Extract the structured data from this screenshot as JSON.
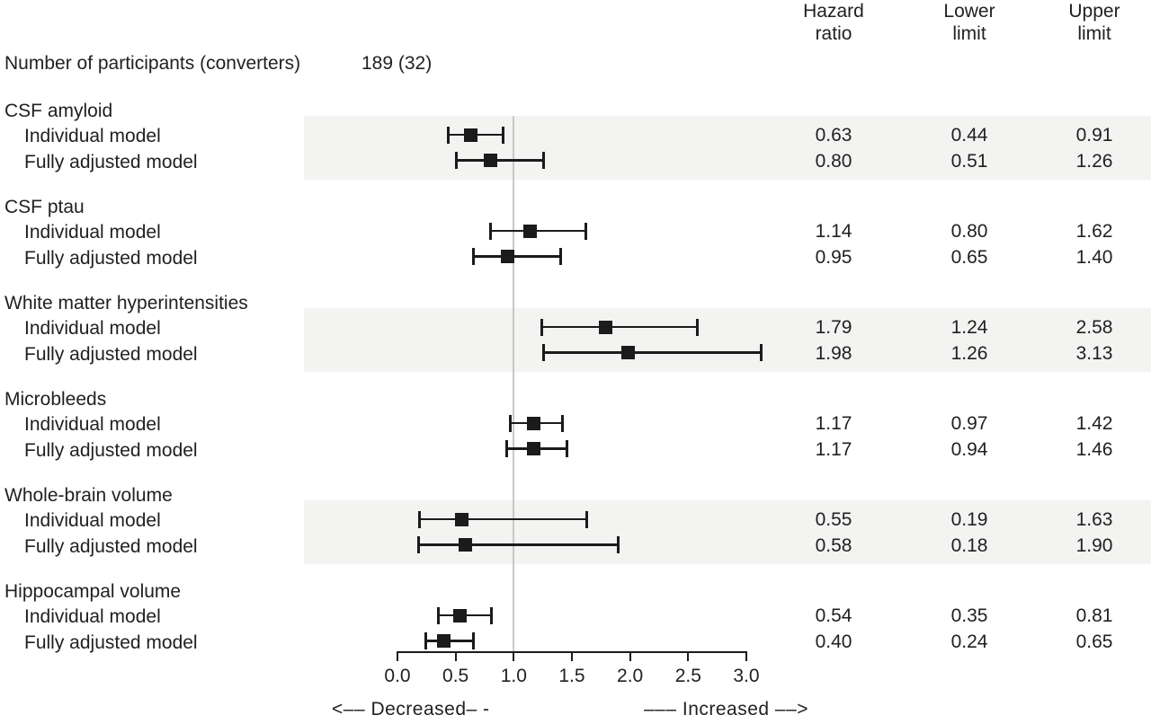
{
  "participants": {
    "label": "Number of participants (converters)",
    "value": "189 (32)"
  },
  "header": {
    "columns": [
      {
        "line1": "Hazard",
        "line2": "ratio"
      },
      {
        "line1": "Lower",
        "line2": "limit"
      },
      {
        "line1": "Upper",
        "line2": "limit"
      }
    ]
  },
  "chart_data": {
    "type": "forest",
    "title": "",
    "columns": [
      "Hazard ratio",
      "Lower limit",
      "Upper limit"
    ],
    "x_axis": {
      "range": [
        0.0,
        3.0
      ],
      "ticks": [
        "0.0",
        "0.5",
        "1.0",
        "1.5",
        "2.0",
        "2.5",
        "3.0"
      ],
      "reference_line": 1.0,
      "grid": false
    },
    "groups": [
      {
        "name": "CSF amyloid",
        "shaded": true,
        "rows": [
          {
            "label": "Individual model",
            "hazard_ratio": "0.63",
            "lower_limit": "0.44",
            "upper_limit": "0.91"
          },
          {
            "label": "Fully adjusted model",
            "hazard_ratio": "0.80",
            "lower_limit": "0.51",
            "upper_limit": "1.26"
          }
        ]
      },
      {
        "name": "CSF ptau",
        "shaded": false,
        "rows": [
          {
            "label": "Individual model",
            "hazard_ratio": "1.14",
            "lower_limit": "0.80",
            "upper_limit": "1.62"
          },
          {
            "label": "Fully adjusted model",
            "hazard_ratio": "0.95",
            "lower_limit": "0.65",
            "upper_limit": "1.40"
          }
        ]
      },
      {
        "name": "White matter hyperintensities",
        "shaded": true,
        "rows": [
          {
            "label": "Individual model",
            "hazard_ratio": "1.79",
            "lower_limit": "1.24",
            "upper_limit": "2.58"
          },
          {
            "label": "Fully adjusted model",
            "hazard_ratio": "1.98",
            "lower_limit": "1.26",
            "upper_limit": "3.13"
          }
        ]
      },
      {
        "name": "Microbleeds",
        "shaded": false,
        "rows": [
          {
            "label": "Individual model",
            "hazard_ratio": "1.17",
            "lower_limit": "0.97",
            "upper_limit": "1.42"
          },
          {
            "label": "Fully adjusted model",
            "hazard_ratio": "1.17",
            "lower_limit": "0.94",
            "upper_limit": "1.46"
          }
        ]
      },
      {
        "name": "Whole-brain volume",
        "shaded": true,
        "rows": [
          {
            "label": "Individual model",
            "hazard_ratio": "0.55",
            "lower_limit": "0.19",
            "upper_limit": "1.63"
          },
          {
            "label": "Fully adjusted model",
            "hazard_ratio": "0.58",
            "lower_limit": "0.18",
            "upper_limit": "1.90"
          }
        ]
      },
      {
        "name": "Hippocampal volume",
        "shaded": false,
        "rows": [
          {
            "label": "Individual model",
            "hazard_ratio": "0.54",
            "lower_limit": "0.35",
            "upper_limit": "0.81"
          },
          {
            "label": "Fully adjusted model",
            "hazard_ratio": "0.40",
            "lower_limit": "0.24",
            "upper_limit": "0.65"
          }
        ]
      }
    ],
    "direction_labels": {
      "decreased": "<–– Decreased– -",
      "increased": "––– Increased ––>"
    },
    "legend_position": "bottom",
    "marker": "filled-square"
  },
  "colors": {
    "ink": "#1b1b1b",
    "text": "#212121",
    "band": "#f3f3f2",
    "reference_line": "#c8c8c8",
    "background": "#ffffff"
  }
}
